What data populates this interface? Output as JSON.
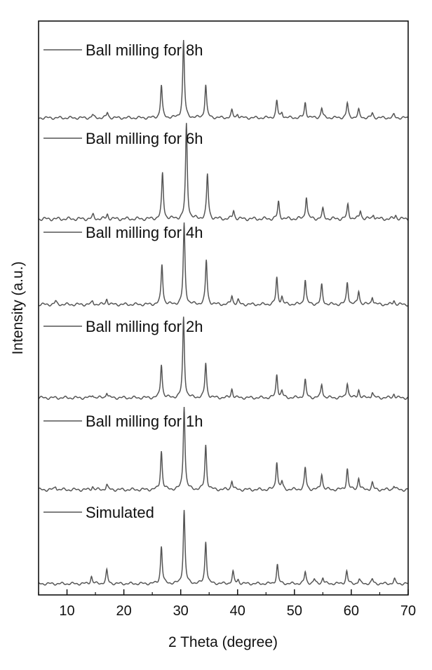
{
  "chart_data": {
    "type": "line",
    "xlabel": "2 Theta (degree)",
    "ylabel": "Intensity (a.u.)",
    "xlim": [
      5,
      70
    ],
    "xticks": [
      10,
      20,
      30,
      40,
      50,
      60,
      70
    ],
    "grid": false,
    "legend_placement": "top-left of each panel",
    "line_color": "#555555",
    "series": [
      {
        "name": "Ball milling for 8h",
        "peaks": [
          [
            14.5,
            0.04
          ],
          [
            17.1,
            0.07
          ],
          [
            26.6,
            0.42
          ],
          [
            30.5,
            1.0
          ],
          [
            34.4,
            0.43
          ],
          [
            39.0,
            0.09
          ],
          [
            40.0,
            0.05
          ],
          [
            46.9,
            0.22
          ],
          [
            47.8,
            0.07
          ],
          [
            51.9,
            0.2
          ],
          [
            54.8,
            0.13
          ],
          [
            59.3,
            0.19
          ],
          [
            61.3,
            0.1
          ],
          [
            63.7,
            0.06
          ],
          [
            67.5,
            0.04
          ]
        ]
      },
      {
        "name": "Ball milling for 6h",
        "peaks": [
          [
            14.6,
            0.04
          ],
          [
            17.1,
            0.05
          ],
          [
            26.8,
            0.48
          ],
          [
            31.0,
            1.0
          ],
          [
            34.7,
            0.47
          ],
          [
            39.3,
            0.09
          ],
          [
            47.2,
            0.18
          ],
          [
            52.1,
            0.24
          ],
          [
            55.0,
            0.1
          ],
          [
            59.4,
            0.15
          ],
          [
            61.6,
            0.09
          ],
          [
            63.9,
            0.05
          ],
          [
            67.8,
            0.04
          ]
        ]
      },
      {
        "name": "Ball milling for 4h",
        "peaks": [
          [
            8.0,
            0.04
          ],
          [
            14.5,
            0.04
          ],
          [
            17.0,
            0.07
          ],
          [
            26.7,
            0.5
          ],
          [
            30.6,
            1.0
          ],
          [
            34.5,
            0.55
          ],
          [
            39.0,
            0.11
          ],
          [
            40.1,
            0.05
          ],
          [
            46.9,
            0.33
          ],
          [
            47.8,
            0.09
          ],
          [
            51.9,
            0.31
          ],
          [
            54.8,
            0.24
          ],
          [
            59.3,
            0.28
          ],
          [
            61.3,
            0.17
          ],
          [
            63.7,
            0.1
          ],
          [
            67.5,
            0.05
          ]
        ]
      },
      {
        "name": "Ball milling for 2h",
        "peaks": [
          [
            14.5,
            0.04
          ],
          [
            17.0,
            0.07
          ],
          [
            26.6,
            0.42
          ],
          [
            30.5,
            1.0
          ],
          [
            34.4,
            0.43
          ],
          [
            39.0,
            0.11
          ],
          [
            46.9,
            0.29
          ],
          [
            47.8,
            0.08
          ],
          [
            51.9,
            0.22
          ],
          [
            54.8,
            0.17
          ],
          [
            59.3,
            0.19
          ],
          [
            61.3,
            0.1
          ],
          [
            63.7,
            0.07
          ],
          [
            67.5,
            0.05
          ]
        ]
      },
      {
        "name": "Ball milling for 1h",
        "peaks": [
          [
            8.0,
            0.04
          ],
          [
            14.5,
            0.04
          ],
          [
            17.0,
            0.06
          ],
          [
            26.6,
            0.46
          ],
          [
            30.6,
            1.0
          ],
          [
            34.4,
            0.53
          ],
          [
            39.0,
            0.11
          ],
          [
            46.9,
            0.34
          ],
          [
            47.8,
            0.09
          ],
          [
            51.9,
            0.26
          ],
          [
            54.8,
            0.19
          ],
          [
            59.3,
            0.25
          ],
          [
            61.3,
            0.14
          ],
          [
            63.7,
            0.08
          ],
          [
            67.5,
            0.05
          ]
        ]
      },
      {
        "name": "Simulated",
        "peaks": [
          [
            14.3,
            0.1
          ],
          [
            17.0,
            0.18
          ],
          [
            26.6,
            0.51
          ],
          [
            30.6,
            1.0
          ],
          [
            34.4,
            0.58
          ],
          [
            39.2,
            0.16
          ],
          [
            40.1,
            0.05
          ],
          [
            47.0,
            0.26
          ],
          [
            51.9,
            0.16
          ],
          [
            53.5,
            0.06
          ],
          [
            55.0,
            0.08
          ],
          [
            59.2,
            0.17
          ],
          [
            61.4,
            0.06
          ],
          [
            63.7,
            0.06
          ],
          [
            67.6,
            0.06
          ]
        ]
      }
    ]
  }
}
